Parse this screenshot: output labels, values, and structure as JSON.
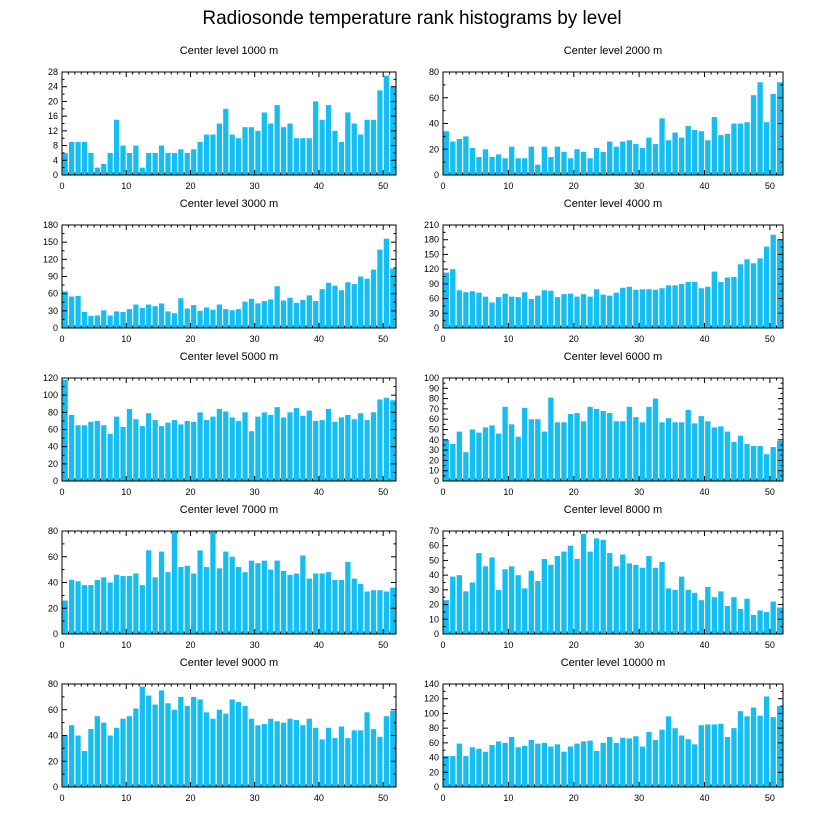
{
  "title": "Radiosonde temperature rank histograms by level",
  "colors": {
    "bar": "#14BEF2",
    "axis": "#000000"
  },
  "chart_data": [
    {
      "type": "bar",
      "title": "Center level 1000 m",
      "xlim": [
        0,
        52
      ],
      "ylim": [
        0,
        28
      ],
      "xticks": [
        0,
        10,
        20,
        30,
        40,
        50
      ],
      "yticks": [
        0,
        4,
        8,
        12,
        16,
        20,
        24,
        28
      ],
      "x_start": 0,
      "values": [
        6,
        9,
        9,
        9,
        6,
        2,
        3,
        6,
        15,
        8,
        6,
        8,
        2,
        6,
        6,
        8,
        6,
        6,
        7,
        6,
        7,
        9,
        11,
        11,
        14,
        18,
        11,
        10,
        13,
        13,
        12,
        17,
        14,
        19,
        13,
        14,
        10,
        10,
        10,
        20,
        15,
        19,
        12,
        9,
        17,
        14,
        11,
        15,
        15,
        23,
        27,
        24
      ]
    },
    {
      "type": "bar",
      "title": "Center level 2000 m",
      "xlim": [
        0,
        52
      ],
      "ylim": [
        0,
        80
      ],
      "xticks": [
        0,
        10,
        20,
        30,
        40,
        50
      ],
      "yticks": [
        0,
        20,
        40,
        60,
        80
      ],
      "x_start": 0,
      "values": [
        34,
        26,
        28,
        30,
        21,
        14,
        20,
        14,
        16,
        13,
        22,
        13,
        13,
        22,
        8,
        22,
        14,
        22,
        18,
        13,
        20,
        18,
        13,
        21,
        18,
        26,
        22,
        26,
        27,
        24,
        21,
        29,
        24,
        44,
        27,
        33,
        29,
        38,
        35,
        34,
        27,
        45,
        31,
        32,
        40,
        40,
        41,
        62,
        72,
        41,
        63,
        72
      ]
    },
    {
      "type": "bar",
      "title": "Center level 3000 m",
      "xlim": [
        0,
        52
      ],
      "ylim": [
        0,
        180
      ],
      "xticks": [
        0,
        10,
        20,
        30,
        40,
        50
      ],
      "yticks": [
        0,
        30,
        60,
        90,
        120,
        150,
        180
      ],
      "x_start": 0,
      "values": [
        64,
        55,
        56,
        28,
        21,
        22,
        31,
        22,
        29,
        28,
        33,
        41,
        35,
        41,
        38,
        43,
        29,
        26,
        52,
        34,
        40,
        30,
        36,
        32,
        41,
        33,
        31,
        33,
        46,
        51,
        43,
        47,
        50,
        73,
        48,
        53,
        44,
        49,
        57,
        47,
        68,
        79,
        74,
        66,
        80,
        77,
        90,
        86,
        102,
        137,
        156,
        104
      ]
    },
    {
      "type": "bar",
      "title": "Center level 4000 m",
      "xlim": [
        0,
        52
      ],
      "ylim": [
        0,
        210
      ],
      "xticks": [
        0,
        10,
        20,
        30,
        40,
        50
      ],
      "yticks": [
        0,
        30,
        60,
        90,
        120,
        150,
        180,
        210
      ],
      "x_start": 0,
      "values": [
        113,
        120,
        77,
        73,
        75,
        72,
        64,
        52,
        63,
        70,
        64,
        63,
        73,
        59,
        66,
        77,
        76,
        63,
        69,
        70,
        64,
        69,
        64,
        79,
        68,
        66,
        72,
        82,
        84,
        78,
        79,
        79,
        78,
        81,
        87,
        87,
        90,
        94,
        94,
        81,
        84,
        115,
        94,
        103,
        104,
        130,
        140,
        132,
        142,
        166,
        190,
        180
      ]
    },
    {
      "type": "bar",
      "title": "Center level 5000 m",
      "xlim": [
        0,
        52
      ],
      "ylim": [
        0,
        120
      ],
      "xticks": [
        0,
        10,
        20,
        30,
        40,
        50
      ],
      "yticks": [
        0,
        20,
        40,
        60,
        80,
        100,
        120
      ],
      "x_start": 0,
      "values": [
        118,
        77,
        65,
        65,
        69,
        70,
        65,
        55,
        75,
        63,
        84,
        72,
        64,
        79,
        71,
        64,
        68,
        71,
        66,
        70,
        69,
        80,
        71,
        75,
        84,
        81,
        74,
        70,
        80,
        58,
        75,
        80,
        77,
        86,
        74,
        80,
        85,
        76,
        82,
        70,
        71,
        84,
        69,
        74,
        77,
        72,
        79,
        71,
        80,
        95,
        97,
        94
      ]
    },
    {
      "type": "bar",
      "title": "Center level 6000 m",
      "xlim": [
        0,
        52
      ],
      "ylim": [
        0,
        100
      ],
      "xticks": [
        0,
        10,
        20,
        30,
        40,
        50
      ],
      "yticks": [
        0,
        10,
        20,
        30,
        40,
        50,
        60,
        70,
        80,
        90,
        100
      ],
      "x_start": 0,
      "values": [
        40,
        36,
        48,
        28,
        50,
        47,
        52,
        54,
        46,
        72,
        55,
        43,
        71,
        60,
        60,
        48,
        81,
        57,
        57,
        65,
        66,
        58,
        72,
        70,
        68,
        66,
        58,
        58,
        72,
        62,
        57,
        72,
        80,
        57,
        61,
        57,
        57,
        69,
        56,
        63,
        58,
        52,
        53,
        48,
        38,
        44,
        36,
        34,
        34,
        26,
        33,
        39
      ]
    },
    {
      "type": "bar",
      "title": "Center level 7000 m",
      "xlim": [
        0,
        52
      ],
      "ylim": [
        0,
        80
      ],
      "xticks": [
        0,
        10,
        20,
        30,
        40,
        50
      ],
      "yticks": [
        0,
        20,
        40,
        60,
        80
      ],
      "x_start": 0,
      "values": [
        26,
        42,
        41,
        38,
        38,
        42,
        44,
        40,
        46,
        45,
        45,
        47,
        38,
        65,
        44,
        64,
        48,
        80,
        52,
        53,
        47,
        65,
        52,
        80,
        51,
        64,
        60,
        52,
        48,
        57,
        55,
        57,
        50,
        57,
        49,
        46,
        47,
        61,
        43,
        47,
        47,
        48,
        42,
        42,
        56,
        43,
        39,
        33,
        34,
        34,
        33,
        36
      ]
    },
    {
      "type": "bar",
      "title": "Center level 8000 m",
      "xlim": [
        0,
        52
      ],
      "ylim": [
        0,
        70
      ],
      "xticks": [
        0,
        10,
        20,
        30,
        40,
        50
      ],
      "yticks": [
        0,
        10,
        20,
        30,
        40,
        50,
        60,
        70
      ],
      "x_start": 0,
      "values": [
        23,
        39,
        40,
        29,
        35,
        55,
        46,
        52,
        30,
        44,
        46,
        40,
        31,
        43,
        36,
        51,
        47,
        53,
        56,
        60,
        51,
        68,
        56,
        65,
        64,
        55,
        46,
        54,
        48,
        47,
        45,
        53,
        45,
        49,
        31,
        30,
        39,
        30,
        28,
        23,
        32,
        25,
        29,
        19,
        25,
        17,
        24,
        13,
        16,
        15,
        22,
        18
      ]
    },
    {
      "type": "bar",
      "title": "Center level 9000 m",
      "xlim": [
        0,
        52
      ],
      "ylim": [
        0,
        80
      ],
      "xticks": [
        0,
        10,
        20,
        30,
        40,
        50
      ],
      "yticks": [
        0,
        20,
        40,
        60,
        80
      ],
      "x_start": 0,
      "values": [
        40,
        48,
        40,
        28,
        45,
        55,
        50,
        40,
        46,
        53,
        55,
        61,
        78,
        71,
        64,
        75,
        65,
        60,
        70,
        63,
        70,
        68,
        58,
        53,
        60,
        57,
        68,
        66,
        63,
        53,
        48,
        49,
        53,
        51,
        50,
        53,
        52,
        48,
        53,
        46,
        37,
        46,
        38,
        47,
        38,
        44,
        44,
        58,
        45,
        39,
        55,
        59
      ]
    },
    {
      "type": "bar",
      "title": "Center level 10000 m",
      "xlim": [
        0,
        52
      ],
      "ylim": [
        0,
        140
      ],
      "xticks": [
        0,
        10,
        20,
        30,
        40,
        50
      ],
      "yticks": [
        0,
        20,
        40,
        60,
        80,
        100,
        120,
        140
      ],
      "x_start": 0,
      "values": [
        42,
        42,
        59,
        42,
        54,
        52,
        48,
        57,
        62,
        60,
        68,
        54,
        56,
        64,
        59,
        60,
        55,
        58,
        48,
        55,
        59,
        62,
        63,
        49,
        60,
        68,
        60,
        67,
        66,
        69,
        55,
        75,
        64,
        78,
        96,
        80,
        70,
        65,
        58,
        84,
        85,
        85,
        86,
        68,
        80,
        103,
        96,
        108,
        97,
        123,
        95,
        110
      ]
    }
  ]
}
